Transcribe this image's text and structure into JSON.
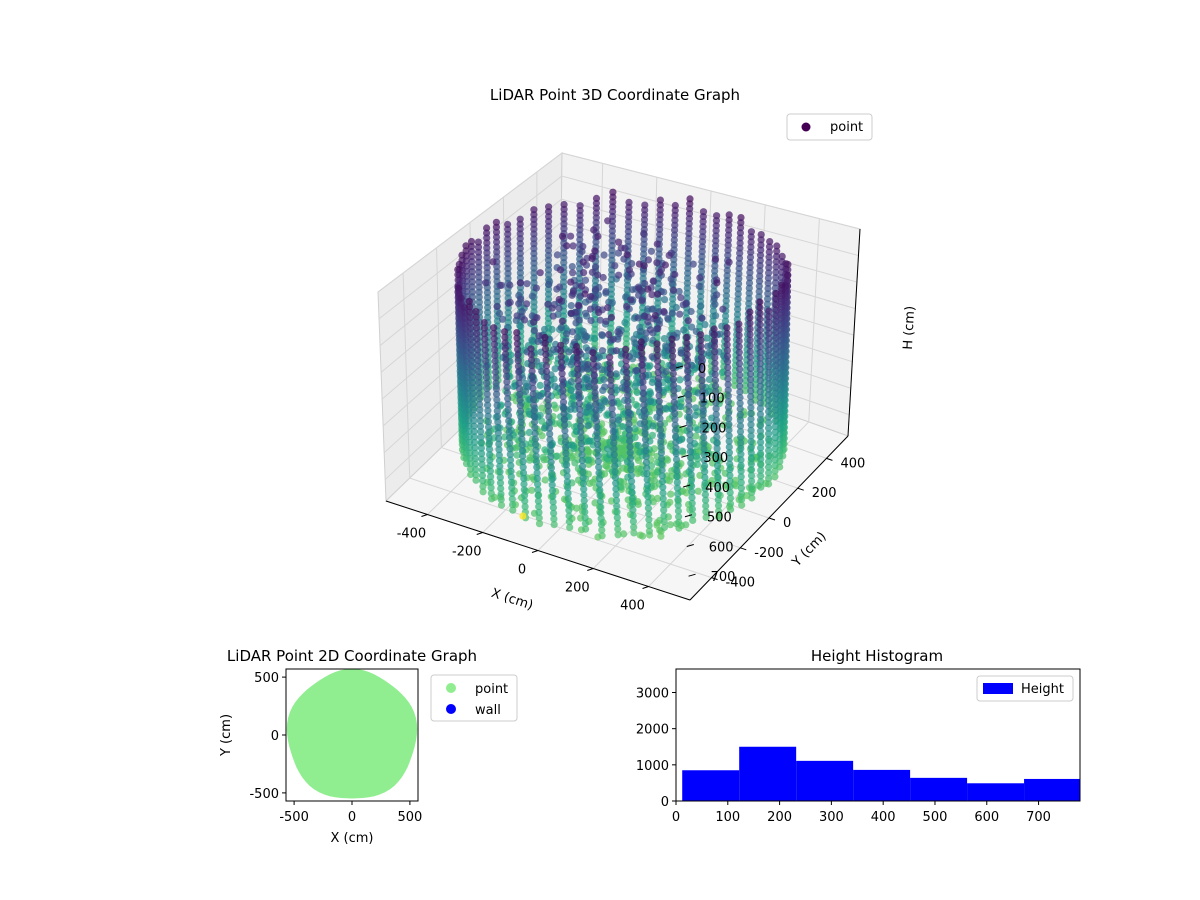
{
  "chart_data": [
    {
      "type": "scatter3d",
      "title": "LiDAR Point 3D Coordinate Graph",
      "xlabel": "X (cm)",
      "ylabel": "Y (cm)",
      "zlabel": "H (cm)",
      "x_ticks": [
        "-400",
        "-200",
        "0",
        "200",
        "400"
      ],
      "y_ticks": [
        "-400",
        "-200",
        "0",
        "200",
        "400"
      ],
      "z_ticks": [
        "0",
        "100",
        "200",
        "300",
        "400",
        "500",
        "600",
        "700"
      ],
      "xlim": [
        -550,
        550
      ],
      "ylim": [
        -550,
        550
      ],
      "zlim": [
        0,
        780
      ],
      "z_inverted": true,
      "colormap": "viridis",
      "legend": [
        {
          "label": "point",
          "color": "#440154"
        }
      ],
      "legend_position": "upper right",
      "shape": "cylindrical wall of scanned points, radius about 520 cm, heights 0 to 780 cm, with interior clutter near the center",
      "grid": true
    },
    {
      "type": "scatter",
      "title": "LiDAR Point 2D Coordinate Graph",
      "xlabel": "X (cm)",
      "ylabel": "Y (cm)",
      "x_ticks": [
        "-500",
        "0",
        "500"
      ],
      "y_ticks": [
        "-500",
        "0",
        "500"
      ],
      "xlim": [
        -570,
        570
      ],
      "ylim": [
        -570,
        570
      ],
      "series": [
        {
          "name": "point",
          "color": "#90ee90",
          "shape": "filled disc of radius about 560"
        },
        {
          "name": "wall",
          "color": "#0000ff"
        }
      ],
      "legend_position": "outside right"
    },
    {
      "type": "histogram",
      "title": "Height Histogram",
      "xlabel": "",
      "ylabel": "",
      "x_ticks": [
        "0",
        "100",
        "200",
        "300",
        "400",
        "500",
        "600",
        "700"
      ],
      "y_ticks": [
        "0",
        "1000",
        "2000",
        "3000"
      ],
      "xlim": [
        0,
        780
      ],
      "ylim": [
        0,
        3650
      ],
      "color": "#0000ff",
      "legend": [
        {
          "label": "Height",
          "color": "#0000ff"
        }
      ],
      "legend_position": "upper right",
      "bins": [
        {
          "start": 12,
          "end": 122,
          "count": 850
        },
        {
          "start": 122,
          "end": 232,
          "count": 1500
        },
        {
          "start": 232,
          "end": 342,
          "count": 1110
        },
        {
          "start": 342,
          "end": 452,
          "count": 860
        },
        {
          "start": 452,
          "end": 562,
          "count": 640
        },
        {
          "start": 562,
          "end": 672,
          "count": 490
        },
        {
          "start": 672,
          "end": 782,
          "count": 610
        }
      ]
    }
  ]
}
